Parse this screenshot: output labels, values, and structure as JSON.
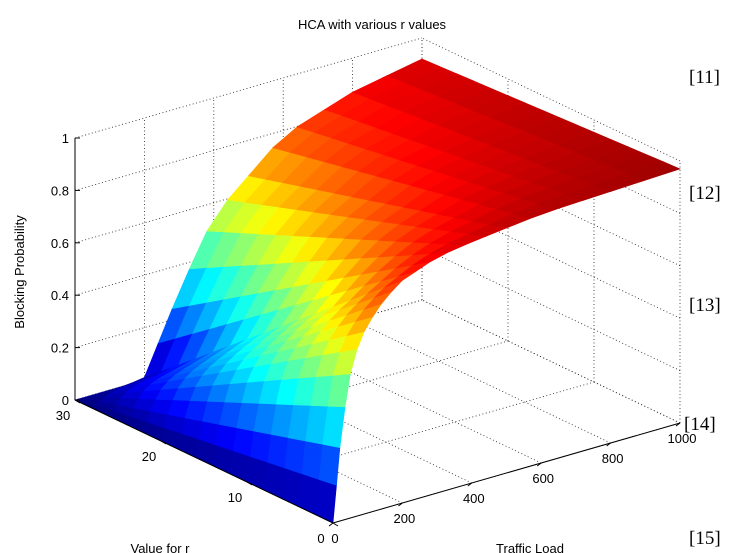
{
  "chart_data": {
    "type": "surface",
    "title": "HCA with various r values",
    "xlabel": "Traffic Load",
    "ylabel": "Value for r",
    "zlabel": "Blocking Probability",
    "x_ticks": [
      "0",
      "200",
      "400",
      "600",
      "800",
      "1000"
    ],
    "y_ticks": [
      "0",
      "10",
      "20",
      "30"
    ],
    "z_ticks": [
      "0",
      "0.2",
      "0.4",
      "0.6",
      "0.8",
      "1"
    ],
    "xlim": [
      0,
      1000
    ],
    "ylim": [
      0,
      30
    ],
    "zlim": [
      0,
      1
    ],
    "grid": true,
    "colormap": "jet",
    "r_values": [
      0,
      2,
      4,
      6,
      8,
      10,
      12,
      14,
      16,
      18,
      20,
      22,
      24,
      26,
      28,
      30
    ],
    "traffic_load": [
      0,
      25,
      50,
      75,
      100,
      150,
      200,
      300,
      400,
      600,
      800,
      1000
    ],
    "blocking_probability_at_r0": [
      0,
      0.35,
      0.55,
      0.66,
      0.72,
      0.8,
      0.85,
      0.9,
      0.92,
      0.95,
      0.96,
      0.97
    ],
    "blocking_probability_at_r30": [
      0,
      0.0,
      0.0,
      0.0,
      0.0,
      0.0,
      0.01,
      0.3,
      0.55,
      0.78,
      0.87,
      0.92
    ]
  },
  "side_refs": [
    "[11]",
    "[12]",
    "[13]",
    "[14]",
    "[15]"
  ]
}
